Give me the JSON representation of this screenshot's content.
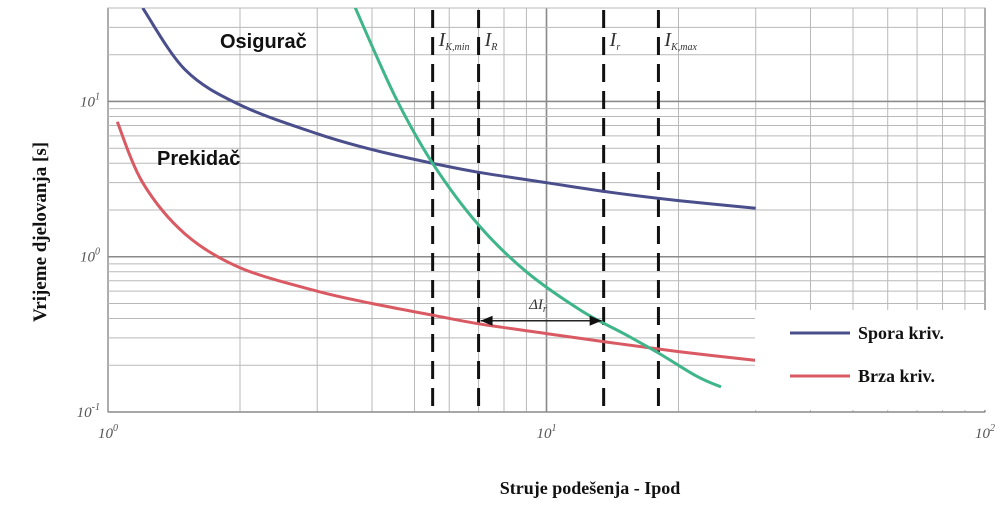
{
  "chart_data": {
    "type": "line",
    "xlabel": "Struje podešenja  - Ipod",
    "ylabel": "Vrijeme djelovanja [s]",
    "xscale": "log",
    "yscale": "log",
    "xlim": [
      1,
      100
    ],
    "ylim": [
      0.1,
      40
    ],
    "x_ticks": [
      {
        "value": 1,
        "base": "10",
        "exp": "0"
      },
      {
        "value": 10,
        "base": "10",
        "exp": "1"
      },
      {
        "value": 100,
        "base": "10",
        "exp": "2"
      }
    ],
    "y_ticks": [
      {
        "value": 0.1,
        "base": "10",
        "exp": "-1"
      },
      {
        "value": 1,
        "base": "10",
        "exp": "0"
      },
      {
        "value": 10,
        "base": "10",
        "exp": "1"
      }
    ],
    "grid": true,
    "curve_labels": {
      "fuse": "Osigurač",
      "breaker": "Prekidač"
    },
    "series": [
      {
        "name": "Spora kriv.",
        "color": "#4a4f8c",
        "x": [
          1.2,
          1.5,
          2,
          3,
          4,
          5.5,
          7,
          10,
          14,
          20,
          30
        ],
        "y": [
          40,
          16,
          9.5,
          6.2,
          4.9,
          4.0,
          3.5,
          3.0,
          2.6,
          2.3,
          2.05
        ]
      },
      {
        "name": "Brza kriv.",
        "color": "#d95a63",
        "x": [
          1.05,
          1.2,
          1.5,
          2,
          3,
          4,
          5.5,
          7,
          10,
          14,
          20,
          30
        ],
        "y": [
          7.4,
          3.0,
          1.4,
          0.85,
          0.6,
          0.5,
          0.42,
          0.37,
          0.32,
          0.28,
          0.245,
          0.215
        ]
      },
      {
        "name": "",
        "color": "#3fb58a",
        "x": [
          3.6,
          4.5,
          5.5,
          7,
          9,
          12,
          15,
          18,
          22,
          25
        ],
        "y": [
          45,
          11,
          4.0,
          1.6,
          0.8,
          0.45,
          0.32,
          0.24,
          0.17,
          0.145
        ]
      }
    ],
    "vlines": [
      {
        "x": 5.5,
        "label": "I",
        "sub": "K,min"
      },
      {
        "x": 7.0,
        "label": "I",
        "sub": "R"
      },
      {
        "x": 13.5,
        "label": "I",
        "sub": "r"
      },
      {
        "x": 18.0,
        "label": "I",
        "sub": "K,max"
      }
    ],
    "annotation": {
      "text": "ΔI",
      "sub": "r",
      "x_from": 7.0,
      "x_to": 13.5,
      "y": 0.37
    },
    "legend_placement": "bottom-right"
  }
}
